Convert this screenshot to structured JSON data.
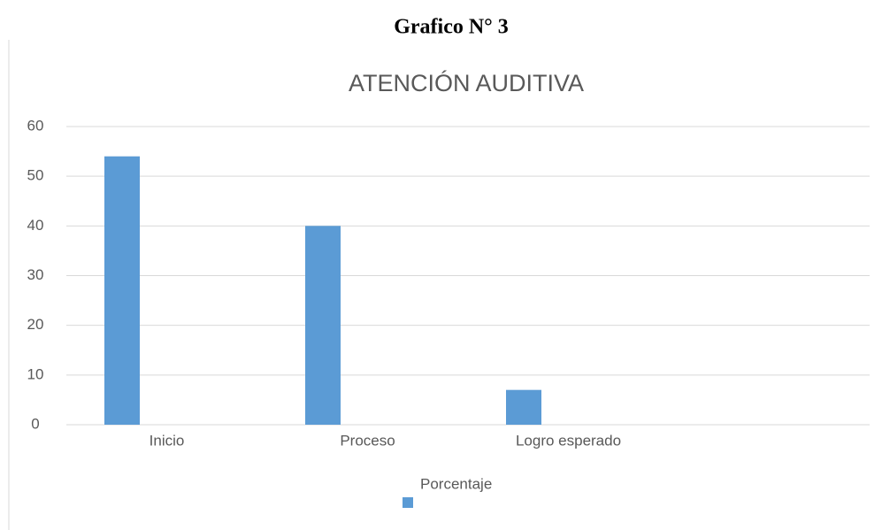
{
  "heading": "Grafico N° 3",
  "chart_data": {
    "type": "bar",
    "title": "ATENCIÓN AUDITIVA",
    "categories": [
      "Inicio",
      "Proceso",
      "Logro esperado",
      null
    ],
    "series": [
      {
        "name": "Porcentaje",
        "color": "#5b9bd5",
        "values": [
          54,
          40,
          7,
          null
        ]
      }
    ],
    "ylim": [
      0,
      60
    ],
    "yticks": [
      0,
      10,
      20,
      30,
      40,
      50,
      60
    ],
    "grid": true,
    "legend": "bottom"
  }
}
